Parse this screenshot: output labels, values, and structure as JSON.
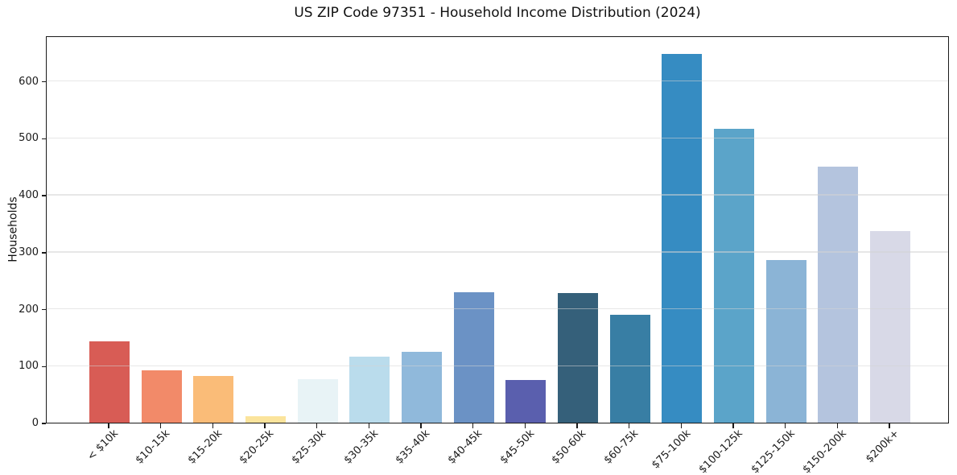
{
  "chart_data": {
    "type": "bar",
    "title": "US ZIP Code 97351 - Household Income Distribution (2024)",
    "xlabel": "",
    "ylabel": "Households",
    "categories": [
      "< $10k",
      "$10-15k",
      "$15-20k",
      "$20-25k",
      "$25-30k",
      "$30-35k",
      "$35-40k",
      "$40-45k",
      "$45-50k",
      "$50-60k",
      "$60-75k",
      "$75-100k",
      "$100-125k",
      "$125-150k",
      "$150-200k",
      "$200k+"
    ],
    "values": [
      143,
      92,
      82,
      12,
      77,
      116,
      124,
      229,
      75,
      228,
      190,
      648,
      516,
      286,
      450,
      337
    ],
    "bar_colors": [
      "#d85c55",
      "#f28a69",
      "#fabc78",
      "#fbe49c",
      "#e8f3f6",
      "#badcec",
      "#90b9db",
      "#6b92c5",
      "#5a5fae",
      "#35607a",
      "#387ea4",
      "#368cc2",
      "#5ba4c9",
      "#8bb4d6",
      "#b4c4de",
      "#d8d9e7"
    ],
    "ylim": [
      0,
      680
    ],
    "yticks": [
      0,
      100,
      200,
      300,
      400,
      500,
      600
    ],
    "grid": "horizontal",
    "grid_above_bars": true,
    "grid_color": "#e9e9e9",
    "spine_color": "#1a1a1a",
    "background_color": "#ffffff",
    "legend": "none"
  }
}
